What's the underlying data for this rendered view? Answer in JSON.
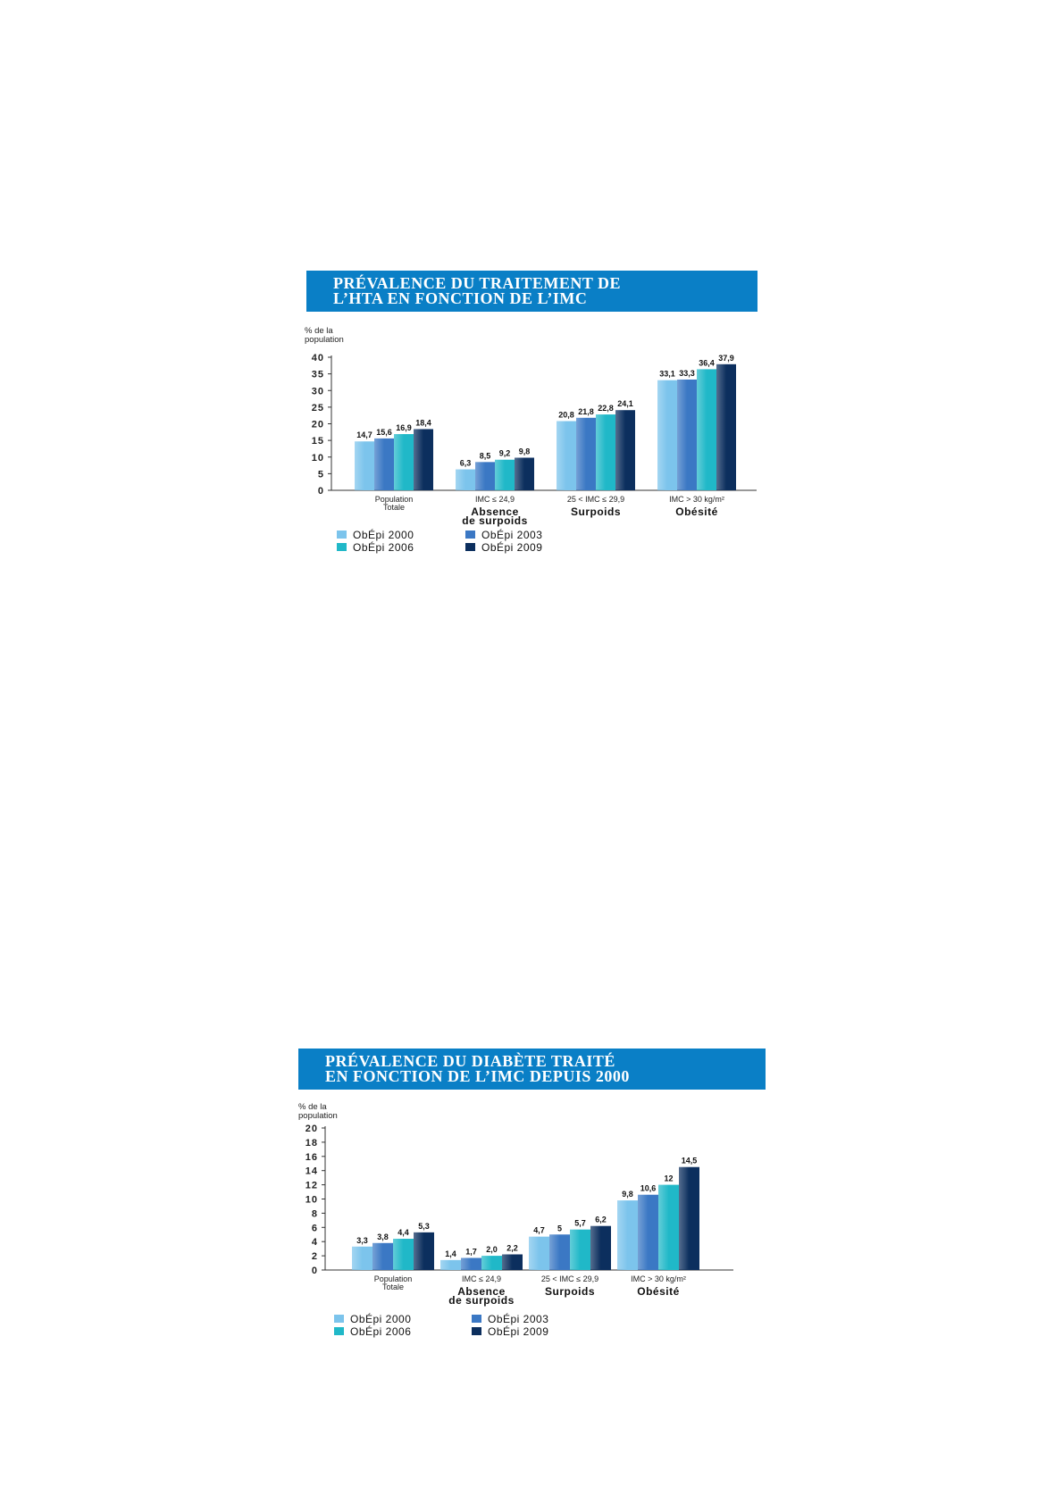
{
  "charts": [
    {
      "title_line1": "PRÉVALENCE DU TRAITEMENT DE",
      "title_line2": "L’HTA EN FONCTION DE L’IMC"
    },
    {
      "title_line1": "PRÉVALENCE DU DIABÈTE TRAITÉ",
      "title_line2": "EN FONCTION DE L’IMC DEPUIS 2000"
    }
  ],
  "chart_data": [
    {
      "type": "bar",
      "title": "PRÉVALENCE DU TRAITEMENT DE L’HTA EN FONCTION DE L’IMC",
      "ylabel": [
        "% de la",
        "population"
      ],
      "ylim": [
        0,
        40
      ],
      "yticks": [
        "0",
        "5",
        "10",
        "15",
        "20",
        "25",
        "30",
        "35",
        "40"
      ],
      "categories": [
        {
          "sub": [
            "Population",
            "Totale"
          ],
          "label": []
        },
        {
          "sub": [
            "IMC ≤ 24,9"
          ],
          "label": [
            "Absence",
            "de surpoids"
          ]
        },
        {
          "sub": [
            "25 < IMC ≤ 29,9"
          ],
          "label": [
            "Surpoids"
          ]
        },
        {
          "sub": [
            "IMC > 30 kg/m²"
          ],
          "label": [
            "Obésité"
          ]
        }
      ],
      "series": [
        {
          "name": "ObÉpi 2000",
          "color": "#7cc4ec",
          "values": [
            14.7,
            6.3,
            20.8,
            33.1
          ],
          "labels": [
            "14,7",
            "6,3",
            "20,8",
            "33,1"
          ]
        },
        {
          "name": "ObÉpi 2003",
          "color": "#3b78c4",
          "values": [
            15.6,
            8.5,
            21.8,
            33.3
          ],
          "labels": [
            "15,6",
            "8,5",
            "21,8",
            "33,3"
          ]
        },
        {
          "name": "ObÉpi 2006",
          "color": "#20b8c8",
          "values": [
            16.9,
            9.2,
            22.8,
            36.4
          ],
          "labels": [
            "16,9",
            "9,2",
            "22,8",
            "36,4"
          ]
        },
        {
          "name": "ObÉpi 2009",
          "color": "#0c2f5e",
          "values": [
            18.4,
            9.8,
            24.1,
            37.9
          ],
          "labels": [
            "18,4",
            "9,8",
            "24,1",
            "37,9"
          ]
        }
      ],
      "legend_placement": "bottom-left",
      "grid": false
    },
    {
      "type": "bar",
      "title": "PRÉVALENCE DU DIABÈTE TRAITÉ EN FONCTION DE L’IMC DEPUIS 2000",
      "ylabel": [
        "% de la",
        "population"
      ],
      "ylim": [
        0,
        20
      ],
      "yticks": [
        "0",
        "2",
        "4",
        "6",
        "8",
        "10",
        "12",
        "14",
        "16",
        "18",
        "20"
      ],
      "categories": [
        {
          "sub": [
            "Population",
            "Totale"
          ],
          "label": []
        },
        {
          "sub": [
            "IMC ≤ 24,9"
          ],
          "label": [
            "Absence",
            "de surpoids"
          ]
        },
        {
          "sub": [
            "25 < IMC ≤ 29,9"
          ],
          "label": [
            "Surpoids"
          ]
        },
        {
          "sub": [
            "IMC > 30 kg/m²"
          ],
          "label": [
            "Obésité"
          ]
        }
      ],
      "series": [
        {
          "name": "ObÉpi 2000",
          "color": "#7cc4ec",
          "values": [
            3.3,
            1.4,
            4.7,
            9.8
          ],
          "labels": [
            "3,3",
            "1,4",
            "4,7",
            "9,8"
          ]
        },
        {
          "name": "ObÉpi 2003",
          "color": "#3b78c4",
          "values": [
            3.8,
            1.7,
            5,
            10.6
          ],
          "labels": [
            "3,8",
            "1,7",
            "5",
            "10,6"
          ]
        },
        {
          "name": "ObÉpi 2006",
          "color": "#20b8c8",
          "values": [
            4.4,
            2.0,
            5.7,
            12
          ],
          "labels": [
            "4,4",
            "2,0",
            "5,7",
            "12"
          ]
        },
        {
          "name": "ObÉpi 2009",
          "color": "#0c2f5e",
          "values": [
            5.3,
            2.2,
            6.2,
            14.5
          ],
          "labels": [
            "5,3",
            "2,2",
            "6,2",
            "14,5"
          ]
        }
      ],
      "legend_placement": "bottom-left",
      "grid": false
    }
  ]
}
